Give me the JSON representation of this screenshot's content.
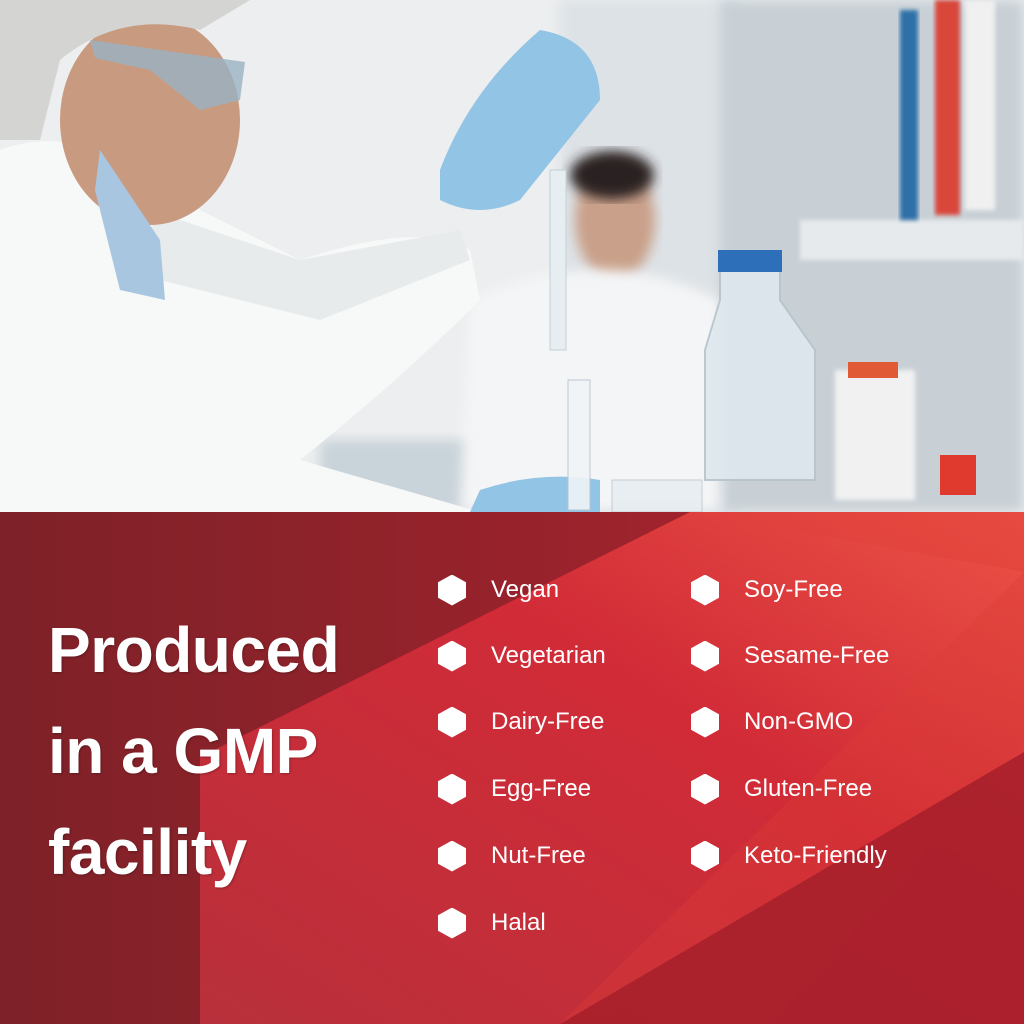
{
  "headline": {
    "lines": [
      "Produced",
      "in a GMP",
      "facility"
    ]
  },
  "features": {
    "column1": [
      "Vegan",
      "Vegetarian",
      "Dairy-Free",
      "Egg-Free",
      "Nut-Free",
      "Halal"
    ],
    "column2": [
      "Soy-Free",
      "Sesame-Free",
      "Non-GMO",
      "Gluten-Free",
      "Keto-Friendly"
    ]
  },
  "bullet_icon": "hexagon-icon",
  "colors": {
    "dark_red": "#8a2029",
    "mid_red": "#c42a36",
    "light_red": "#e8453f",
    "text": "#ffffff"
  }
}
